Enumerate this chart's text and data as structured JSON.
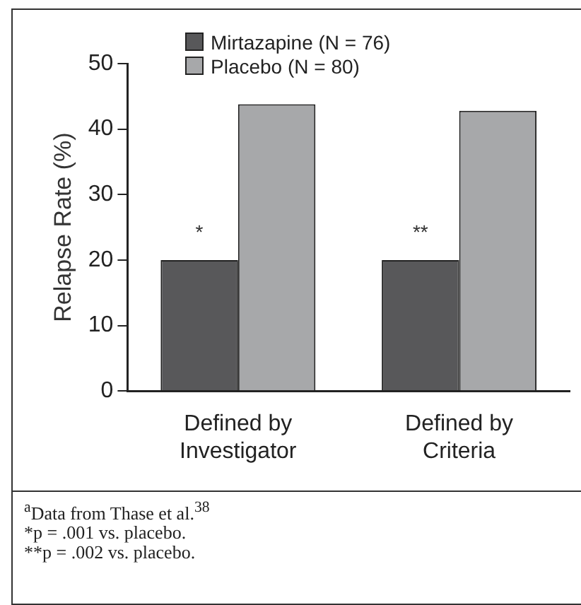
{
  "chart_data": {
    "type": "bar",
    "categories": [
      "Defined by\nInvestigator",
      "Defined by\nCriteria"
    ],
    "series": [
      {
        "name": "Mirtazapine (N = 76)",
        "color": "#58585a",
        "values": [
          20,
          20
        ]
      },
      {
        "name": "Placebo (N = 80)",
        "color": "#a7a8aa",
        "values": [
          43.8,
          42.8
        ]
      }
    ],
    "ylabel": "Relapse Rate (%)",
    "ylim": [
      0,
      50
    ],
    "yticks": [
      0,
      10,
      20,
      30,
      40,
      50
    ],
    "grid": false,
    "legend": "top",
    "annotations": [
      {
        "text": "*",
        "x": "Defined by\nInvestigator",
        "y": 20
      },
      {
        "text": "**",
        "x": "Defined by\nCriteria",
        "y": 20
      },
      "$^{a}$Data from Thase et al.$^{38}$",
      "*p = .001 vs. placebo.",
      "**p = .002 vs. placebo."
    ]
  }
}
